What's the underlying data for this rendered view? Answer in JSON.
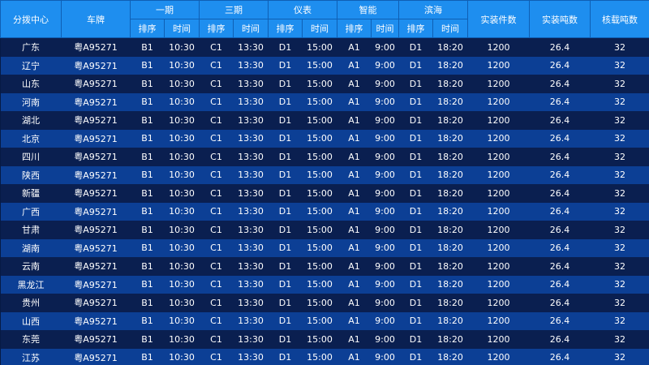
{
  "headers": {
    "center": "分拨中心",
    "plate": "车牌",
    "groups": [
      "一期",
      "三期",
      "仪表",
      "智能",
      "滨海"
    ],
    "sub_order": "排序",
    "sub_time": "时间",
    "actual_count": "实装件数",
    "actual_tons": "实装吨数",
    "rated_tons": "核载吨数"
  },
  "rows": [
    {
      "center": "广东",
      "plate": "粤A95271",
      "c1": [
        "B1",
        "10:30"
      ],
      "c2": [
        "C1",
        "13:30"
      ],
      "c3": [
        "D1",
        "15:00"
      ],
      "c4": [
        "A1",
        "9:00"
      ],
      "c5": [
        "D1",
        "18:20"
      ],
      "count": "1200",
      "tons": "26.4",
      "rated": "32"
    },
    {
      "center": "辽宁",
      "plate": "粤A95271",
      "c1": [
        "B1",
        "10:30"
      ],
      "c2": [
        "C1",
        "13:30"
      ],
      "c3": [
        "D1",
        "15:00"
      ],
      "c4": [
        "A1",
        "9:00"
      ],
      "c5": [
        "D1",
        "18:20"
      ],
      "count": "1200",
      "tons": "26.4",
      "rated": "32"
    },
    {
      "center": "山东",
      "plate": "粤A95271",
      "c1": [
        "B1",
        "10:30"
      ],
      "c2": [
        "C1",
        "13:30"
      ],
      "c3": [
        "D1",
        "15:00"
      ],
      "c4": [
        "A1",
        "9:00"
      ],
      "c5": [
        "D1",
        "18:20"
      ],
      "count": "1200",
      "tons": "26.4",
      "rated": "32"
    },
    {
      "center": "河南",
      "plate": "粤A95271",
      "c1": [
        "B1",
        "10:30"
      ],
      "c2": [
        "C1",
        "13:30"
      ],
      "c3": [
        "D1",
        "15:00"
      ],
      "c4": [
        "A1",
        "9:00"
      ],
      "c5": [
        "D1",
        "18:20"
      ],
      "count": "1200",
      "tons": "26.4",
      "rated": "32"
    },
    {
      "center": "湖北",
      "plate": "粤A95271",
      "c1": [
        "B1",
        "10:30"
      ],
      "c2": [
        "C1",
        "13:30"
      ],
      "c3": [
        "D1",
        "15:00"
      ],
      "c4": [
        "A1",
        "9:00"
      ],
      "c5": [
        "D1",
        "18:20"
      ],
      "count": "1200",
      "tons": "26.4",
      "rated": "32"
    },
    {
      "center": "北京",
      "plate": "粤A95271",
      "c1": [
        "B1",
        "10:30"
      ],
      "c2": [
        "C1",
        "13:30"
      ],
      "c3": [
        "D1",
        "15:00"
      ],
      "c4": [
        "A1",
        "9:00"
      ],
      "c5": [
        "D1",
        "18:20"
      ],
      "count": "1200",
      "tons": "26.4",
      "rated": "32"
    },
    {
      "center": "四川",
      "plate": "粤A95271",
      "c1": [
        "B1",
        "10:30"
      ],
      "c2": [
        "C1",
        "13:30"
      ],
      "c3": [
        "D1",
        "15:00"
      ],
      "c4": [
        "A1",
        "9:00"
      ],
      "c5": [
        "D1",
        "18:20"
      ],
      "count": "1200",
      "tons": "26.4",
      "rated": "32"
    },
    {
      "center": "陕西",
      "plate": "粤A95271",
      "c1": [
        "B1",
        "10:30"
      ],
      "c2": [
        "C1",
        "13:30"
      ],
      "c3": [
        "D1",
        "15:00"
      ],
      "c4": [
        "A1",
        "9:00"
      ],
      "c5": [
        "D1",
        "18:20"
      ],
      "count": "1200",
      "tons": "26.4",
      "rated": "32"
    },
    {
      "center": "新疆",
      "plate": "粤A95271",
      "c1": [
        "B1",
        "10:30"
      ],
      "c2": [
        "C1",
        "13:30"
      ],
      "c3": [
        "D1",
        "15:00"
      ],
      "c4": [
        "A1",
        "9:00"
      ],
      "c5": [
        "D1",
        "18:20"
      ],
      "count": "1200",
      "tons": "26.4",
      "rated": "32"
    },
    {
      "center": "广西",
      "plate": "粤A95271",
      "c1": [
        "B1",
        "10:30"
      ],
      "c2": [
        "C1",
        "13:30"
      ],
      "c3": [
        "D1",
        "15:00"
      ],
      "c4": [
        "A1",
        "9:00"
      ],
      "c5": [
        "D1",
        "18:20"
      ],
      "count": "1200",
      "tons": "26.4",
      "rated": "32"
    },
    {
      "center": "甘肃",
      "plate": "粤A95271",
      "c1": [
        "B1",
        "10:30"
      ],
      "c2": [
        "C1",
        "13:30"
      ],
      "c3": [
        "D1",
        "15:00"
      ],
      "c4": [
        "A1",
        "9:00"
      ],
      "c5": [
        "D1",
        "18:20"
      ],
      "count": "1200",
      "tons": "26.4",
      "rated": "32"
    },
    {
      "center": "湖南",
      "plate": "粤A95271",
      "c1": [
        "B1",
        "10:30"
      ],
      "c2": [
        "C1",
        "13:30"
      ],
      "c3": [
        "D1",
        "15:00"
      ],
      "c4": [
        "A1",
        "9:00"
      ],
      "c5": [
        "D1",
        "18:20"
      ],
      "count": "1200",
      "tons": "26.4",
      "rated": "32"
    },
    {
      "center": "云南",
      "plate": "粤A95271",
      "c1": [
        "B1",
        "10:30"
      ],
      "c2": [
        "C1",
        "13:30"
      ],
      "c3": [
        "D1",
        "15:00"
      ],
      "c4": [
        "A1",
        "9:00"
      ],
      "c5": [
        "D1",
        "18:20"
      ],
      "count": "1200",
      "tons": "26.4",
      "rated": "32"
    },
    {
      "center": "黑龙江",
      "plate": "粤A95271",
      "c1": [
        "B1",
        "10:30"
      ],
      "c2": [
        "C1",
        "13:30"
      ],
      "c3": [
        "D1",
        "15:00"
      ],
      "c4": [
        "A1",
        "9:00"
      ],
      "c5": [
        "D1",
        "18:20"
      ],
      "count": "1200",
      "tons": "26.4",
      "rated": "32"
    },
    {
      "center": "贵州",
      "plate": "粤A95271",
      "c1": [
        "B1",
        "10:30"
      ],
      "c2": [
        "C1",
        "13:30"
      ],
      "c3": [
        "D1",
        "15:00"
      ],
      "c4": [
        "A1",
        "9:00"
      ],
      "c5": [
        "D1",
        "18:20"
      ],
      "count": "1200",
      "tons": "26.4",
      "rated": "32"
    },
    {
      "center": "山西",
      "plate": "粤A95271",
      "c1": [
        "B1",
        "10:30"
      ],
      "c2": [
        "C1",
        "13:30"
      ],
      "c3": [
        "D1",
        "15:00"
      ],
      "c4": [
        "A1",
        "9:00"
      ],
      "c5": [
        "D1",
        "18:20"
      ],
      "count": "1200",
      "tons": "26.4",
      "rated": "32"
    },
    {
      "center": "东莞",
      "plate": "粤A95271",
      "c1": [
        "B1",
        "10:30"
      ],
      "c2": [
        "C1",
        "13:30"
      ],
      "c3": [
        "D1",
        "15:00"
      ],
      "c4": [
        "A1",
        "9:00"
      ],
      "c5": [
        "D1",
        "18:20"
      ],
      "count": "1200",
      "tons": "26.4",
      "rated": "32"
    },
    {
      "center": "江苏",
      "plate": "粤A95271",
      "c1": [
        "B1",
        "10:30"
      ],
      "c2": [
        "C1",
        "13:30"
      ],
      "c3": [
        "D1",
        "15:00"
      ],
      "c4": [
        "A1",
        "9:00"
      ],
      "c5": [
        "D1",
        "18:20"
      ],
      "count": "1200",
      "tons": "26.4",
      "rated": "32"
    }
  ]
}
